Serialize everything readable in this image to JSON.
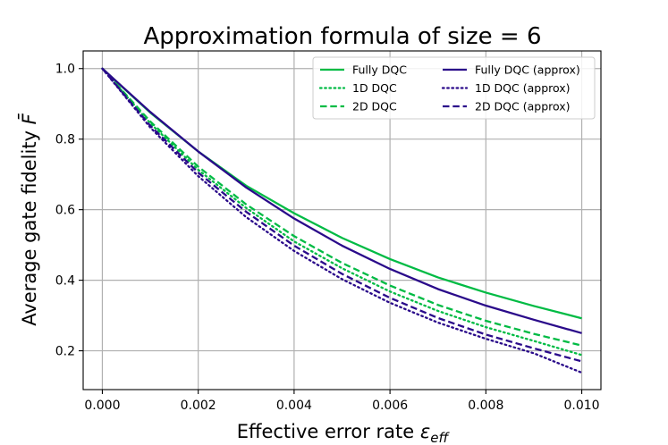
{
  "chart_data": {
    "type": "line",
    "title": "Approximation formula of size = 6",
    "xlabel": "Effective error rate",
    "xlabel_symbol": "ε",
    "xlabel_subscript": "eff",
    "ylabel": "Average gate fidelity",
    "ylabel_symbol": "F̄",
    "xlim": [
      -0.0004,
      0.0104
    ],
    "ylim": [
      0.09,
      1.05
    ],
    "xticks": [
      "0.000",
      "0.002",
      "0.004",
      "0.006",
      "0.008",
      "0.010"
    ],
    "xtick_values": [
      0,
      0.002,
      0.004,
      0.006,
      0.008,
      0.01
    ],
    "yticks": [
      "0.2",
      "0.4",
      "0.6",
      "0.8",
      "1.0"
    ],
    "ytick_values": [
      0.2,
      0.4,
      0.6,
      0.8,
      1.0
    ],
    "grid": true,
    "legend_position": "top-right",
    "x": [
      0,
      0.001,
      0.002,
      0.003,
      0.004,
      0.005,
      0.006,
      0.007,
      0.008,
      0.009,
      0.01
    ],
    "series": [
      {
        "name": "Fully DQC",
        "color": "#00bb44",
        "style": "solid",
        "values": [
          1.0,
          0.875,
          0.765,
          0.668,
          0.59,
          0.52,
          0.46,
          0.408,
          0.365,
          0.327,
          0.292
        ]
      },
      {
        "name": "1D DQC",
        "color": "#00bb44",
        "style": "dotted",
        "values": [
          1.0,
          0.845,
          0.713,
          0.605,
          0.51,
          0.434,
          0.368,
          0.313,
          0.267,
          0.228,
          0.188
        ]
      },
      {
        "name": "2D DQC",
        "color": "#00bb44",
        "style": "dashed",
        "values": [
          1.0,
          0.85,
          0.722,
          0.615,
          0.525,
          0.449,
          0.385,
          0.33,
          0.285,
          0.248,
          0.215
        ]
      },
      {
        "name": "Fully DQC (approx)",
        "color": "#2a0a8a",
        "style": "solid",
        "values": [
          1.0,
          0.877,
          0.765,
          0.663,
          0.575,
          0.498,
          0.432,
          0.375,
          0.328,
          0.288,
          0.25
        ]
      },
      {
        "name": "1D DQC (approx)",
        "color": "#2a0a8a",
        "style": "dotted",
        "values": [
          1.0,
          0.833,
          0.695,
          0.579,
          0.483,
          0.403,
          0.336,
          0.28,
          0.234,
          0.193,
          0.138
        ]
      },
      {
        "name": "2D DQC (approx)",
        "color": "#2a0a8a",
        "style": "dashed",
        "values": [
          1.0,
          0.838,
          0.705,
          0.594,
          0.498,
          0.418,
          0.35,
          0.293,
          0.246,
          0.207,
          0.17
        ]
      }
    ]
  }
}
